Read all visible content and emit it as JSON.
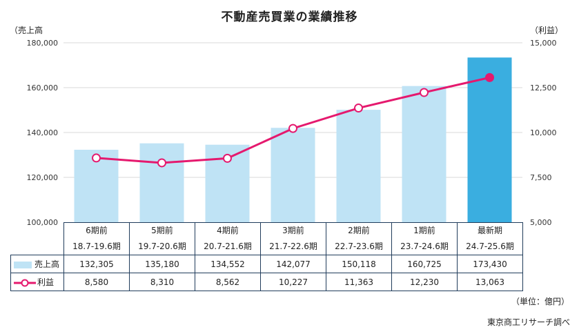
{
  "chart_data": {
    "type": "bar+line",
    "title": "不動産売買業の業績推移",
    "y_left_label": "（売上高",
    "y_right_label": "（利益）",
    "y_left_range": [
      100000,
      180000
    ],
    "y_left_ticks": [
      "100,000",
      "120,000",
      "140,000",
      "160,000",
      "180,000"
    ],
    "y_right_range": [
      5000,
      15000
    ],
    "y_right_ticks": [
      "5,000",
      "7,500",
      "10,000",
      "12,500",
      "15,000"
    ],
    "grid": true,
    "periods": [
      {
        "label": "6期前",
        "range": "18.7-19.6期"
      },
      {
        "label": "5期前",
        "range": "19.7-20.6期"
      },
      {
        "label": "4期前",
        "range": "20.7-21.6期"
      },
      {
        "label": "3期前",
        "range": "21.7-22.6期"
      },
      {
        "label": "2期前",
        "range": "22.7-23.6期"
      },
      {
        "label": "1期前",
        "range": "23.7-24.6期"
      },
      {
        "label": "最新期",
        "range": "24.7-25.6期"
      }
    ],
    "series": [
      {
        "name": "売上高",
        "type": "bar",
        "axis": "left",
        "values": [
          132305,
          135180,
          134552,
          142077,
          150118,
          160725,
          173430
        ],
        "labels": [
          "132,305",
          "135,180",
          "134,552",
          "142,077",
          "150,118",
          "160,725",
          "173,430"
        ],
        "color": "#bfe3f5",
        "highlight_color": "#3aaee0"
      },
      {
        "name": "利益",
        "type": "line",
        "axis": "right",
        "values": [
          8580,
          8310,
          8562,
          10227,
          11363,
          12230,
          13063
        ],
        "labels": [
          "8,580",
          "8,310",
          "8,562",
          "10,227",
          "11,363",
          "12,230",
          "13,063"
        ],
        "color": "#e5196e"
      }
    ]
  },
  "notes": {
    "unit": "（単位：億円）",
    "source": "東京商工リサーチ調べ"
  }
}
